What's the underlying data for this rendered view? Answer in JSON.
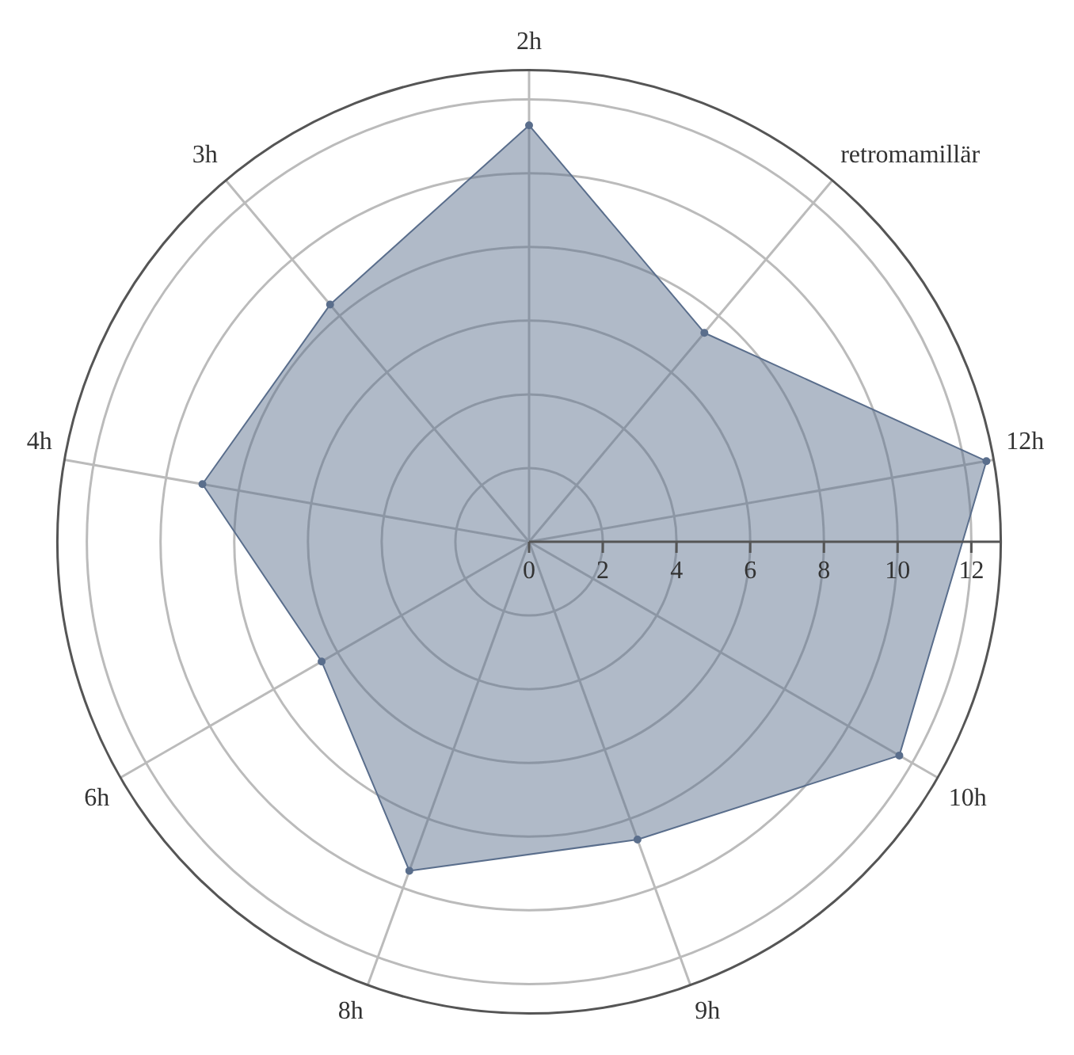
{
  "chart_data": {
    "type": "radar",
    "categories": [
      "2h",
      "retromamillär",
      "12h",
      "10h",
      "9h",
      "8h",
      "6h",
      "4h",
      "3h"
    ],
    "series": [
      {
        "color": "#5a6e8c",
        "values": [
          11.3,
          7.4,
          12.6,
          11.6,
          8.6,
          9.5,
          6.5,
          9.0,
          8.4
        ]
      }
    ],
    "ylim": [
      0,
      12.8
    ],
    "yticks": [
      0,
      2,
      4,
      6,
      8,
      10,
      12
    ],
    "grid": true,
    "legend": false,
    "marker": "circle"
  }
}
